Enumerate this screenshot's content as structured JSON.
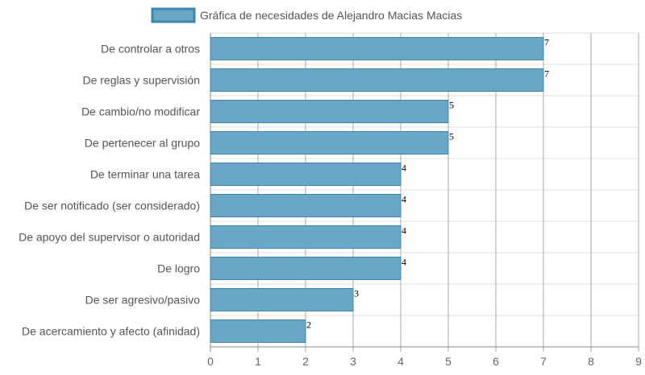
{
  "chart_data": {
    "type": "bar",
    "orientation": "horizontal",
    "title": "",
    "xlabel": "",
    "ylabel": "",
    "legend": {
      "position": "top",
      "entries": [
        "Gráfica de necesidades de Alejandro Macias Macias"
      ]
    },
    "categories": [
      "De controlar a otros",
      "De reglas y supervisión",
      "De cambio/no modificar",
      "De pertenecer al grupo",
      "De terminar una tarea",
      "De ser notificado (ser considerado)",
      "De apoyo del supervisor o autoridad",
      "De logro",
      "De ser agresivo/pasivo",
      "De acercamiento y afecto (afinidad)"
    ],
    "series": [
      {
        "name": "Gráfica de necesidades de Alejandro Macias Macias",
        "values": [
          7,
          7,
          5,
          5,
          4,
          4,
          4,
          4,
          3,
          2
        ],
        "color": "#6aa6c5",
        "border_color": "#3d87ad"
      }
    ],
    "xlim": [
      0,
      9
    ],
    "x_ticks": [
      "0",
      "1",
      "2",
      "3",
      "4",
      "5",
      "6",
      "7",
      "8",
      "9"
    ],
    "grid": true,
    "data_labels": true
  }
}
